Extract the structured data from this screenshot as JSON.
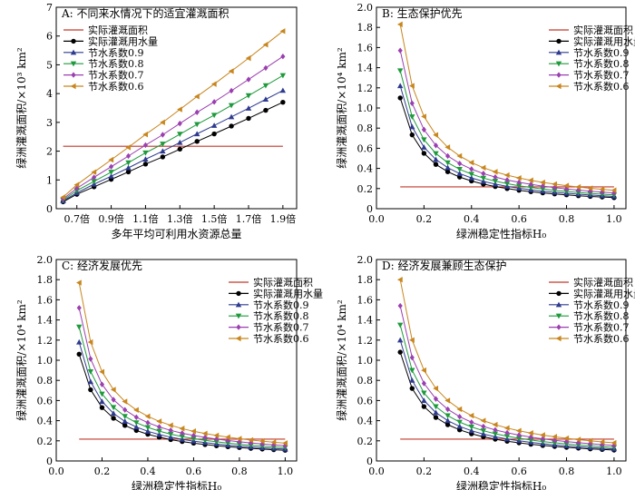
{
  "chart_data": [
    {
      "type": "line",
      "title": "A: 不同来水情况下的适宜灌溉面积",
      "xlabel": "多年平均可利用水资源总量",
      "ylabel": "绿洲灌溉面积/×10³ km²",
      "x": [
        0.62,
        0.7,
        0.8,
        0.9,
        1.0,
        1.1,
        1.2,
        1.3,
        1.4,
        1.5,
        1.6,
        1.7,
        1.8,
        1.9
      ],
      "xticks": [
        0.7,
        0.9,
        1.1,
        1.3,
        1.5,
        1.7,
        1.9
      ],
      "xtick_labels": [
        "0.7倍",
        "0.9倍",
        "1.1倍",
        "1.3倍",
        "1.5倍",
        "1.7倍",
        "1.9倍"
      ],
      "xlim": [
        0.58,
        1.98
      ],
      "ylim": [
        0,
        7
      ],
      "yticks": [
        0,
        1,
        2,
        3,
        4,
        5,
        6,
        7
      ],
      "ytick_labels": [
        "0",
        "1",
        "2",
        "3",
        "4",
        "5",
        "6",
        "7"
      ],
      "legend_position": "top-left",
      "hline": {
        "name": "实际灌溉面积",
        "value": 2.17,
        "x_range": [
          0.62,
          1.9
        ]
      },
      "series": [
        {
          "name": "实际灌溉用水量",
          "values": [
            0.24,
            0.5,
            0.76,
            1.02,
            1.28,
            1.55,
            1.8,
            2.07,
            2.34,
            2.6,
            2.87,
            3.14,
            3.42,
            3.7
          ]
        },
        {
          "name": "节水系数0.9",
          "values": [
            0.27,
            0.55,
            0.85,
            1.13,
            1.42,
            1.72,
            2.0,
            2.3,
            2.6,
            2.89,
            3.19,
            3.49,
            3.8,
            4.11
          ]
        },
        {
          "name": "节水系数0.8",
          "values": [
            0.3,
            0.63,
            0.95,
            1.27,
            1.6,
            1.94,
            2.25,
            2.59,
            2.93,
            3.25,
            3.59,
            3.93,
            4.28,
            4.63
          ]
        },
        {
          "name": "节水系数0.7",
          "values": [
            0.34,
            0.71,
            1.09,
            1.46,
            1.83,
            2.21,
            2.57,
            2.96,
            3.35,
            3.71,
            4.1,
            4.49,
            4.89,
            5.29
          ]
        },
        {
          "name": "节水系数0.6",
          "values": [
            0.4,
            0.83,
            1.27,
            1.7,
            2.13,
            2.58,
            3.0,
            3.45,
            3.9,
            4.33,
            4.78,
            5.23,
            5.7,
            6.17
          ]
        }
      ]
    },
    {
      "type": "line",
      "title": "B: 生态保护优先",
      "xlabel": "绿洲稳定性指标H₀",
      "ylabel": "绿洲灌溉面积/×10⁴ km²",
      "x": [
        0.1,
        0.15,
        0.2,
        0.25,
        0.3,
        0.35,
        0.4,
        0.45,
        0.5,
        0.55,
        0.6,
        0.65,
        0.7,
        0.75,
        0.8,
        0.85,
        0.9,
        0.95,
        1.0
      ],
      "xlim": [
        0,
        1.05
      ],
      "ylim": [
        0,
        2.0
      ],
      "xticks": [
        0,
        0.2,
        0.4,
        0.6,
        0.8,
        1.0
      ],
      "xtick_labels": [
        "0.0",
        "0.2",
        "0.4",
        "0.6",
        "0.8",
        "1.0"
      ],
      "yticks": [
        0,
        0.2,
        0.4,
        0.6,
        0.8,
        1.0,
        1.2,
        1.4,
        1.6,
        1.8,
        2.0
      ],
      "ytick_labels": [
        "0",
        "0.2",
        "0.4",
        "0.6",
        "0.8",
        "1.0",
        "1.2",
        "1.4",
        "1.6",
        "1.8",
        "2.0"
      ],
      "legend_position": "top-right",
      "hline": {
        "name": "实际灌溉面积",
        "value": 0.217,
        "x_range": [
          0.1,
          1.0
        ]
      },
      "series": [
        {
          "name": "实际灌溉用水量",
          "values": [
            1.1,
            0.733,
            0.55,
            0.44,
            0.367,
            0.314,
            0.275,
            0.244,
            0.22,
            0.2,
            0.183,
            0.169,
            0.157,
            0.147,
            0.138,
            0.129,
            0.122,
            0.116,
            0.11
          ]
        },
        {
          "name": "节水系数0.9",
          "values": [
            1.22,
            0.813,
            0.61,
            0.488,
            0.407,
            0.349,
            0.305,
            0.271,
            0.244,
            0.222,
            0.203,
            0.188,
            0.174,
            0.163,
            0.153,
            0.144,
            0.136,
            0.128,
            0.122
          ]
        },
        {
          "name": "节水系数0.8",
          "values": [
            1.37,
            0.913,
            0.685,
            0.548,
            0.457,
            0.391,
            0.343,
            0.304,
            0.274,
            0.249,
            0.228,
            0.211,
            0.196,
            0.183,
            0.171,
            0.161,
            0.152,
            0.144,
            0.137
          ]
        },
        {
          "name": "节水系数0.7",
          "values": [
            1.57,
            1.047,
            0.785,
            0.628,
            0.523,
            0.449,
            0.393,
            0.349,
            0.314,
            0.285,
            0.262,
            0.242,
            0.224,
            0.209,
            0.196,
            0.185,
            0.174,
            0.165,
            0.157
          ]
        },
        {
          "name": "节水系数0.6",
          "values": [
            1.83,
            1.22,
            0.915,
            0.732,
            0.61,
            0.523,
            0.458,
            0.407,
            0.366,
            0.333,
            0.305,
            0.282,
            0.261,
            0.244,
            0.229,
            0.215,
            0.203,
            0.193,
            0.183
          ]
        }
      ]
    },
    {
      "type": "line",
      "title": "C: 经济发展优先",
      "xlabel": "绿洲稳定性指标H₀",
      "ylabel": "绿洲灌溉面积/×10⁴ km²",
      "x": [
        0.1,
        0.15,
        0.2,
        0.25,
        0.3,
        0.35,
        0.4,
        0.45,
        0.5,
        0.55,
        0.6,
        0.65,
        0.7,
        0.75,
        0.8,
        0.85,
        0.9,
        0.95,
        1.0
      ],
      "xlim": [
        0,
        1.05
      ],
      "ylim": [
        0,
        2.0
      ],
      "xticks": [
        0,
        0.2,
        0.4,
        0.6,
        0.8,
        1.0
      ],
      "xtick_labels": [
        "0.0",
        "0.2",
        "0.4",
        "0.6",
        "0.8",
        "1.0"
      ],
      "yticks": [
        0,
        0.2,
        0.4,
        0.6,
        0.8,
        1.0,
        1.2,
        1.4,
        1.6,
        1.8,
        2.0
      ],
      "ytick_labels": [
        "0",
        "0.2",
        "0.4",
        "0.6",
        "0.8",
        "1.0",
        "1.2",
        "1.4",
        "1.6",
        "1.8",
        "2.0"
      ],
      "legend_position": "top-right",
      "hline": {
        "name": "实际灌溉面积",
        "value": 0.217,
        "x_range": [
          0.1,
          1.0
        ]
      },
      "series": [
        {
          "name": "实际灌溉用水量",
          "values": [
            1.06,
            0.707,
            0.53,
            0.424,
            0.353,
            0.303,
            0.265,
            0.236,
            0.212,
            0.193,
            0.177,
            0.163,
            0.151,
            0.141,
            0.133,
            0.125,
            0.118,
            0.112,
            0.106
          ]
        },
        {
          "name": "节水系数0.9",
          "values": [
            1.18,
            0.787,
            0.59,
            0.472,
            0.393,
            0.337,
            0.295,
            0.262,
            0.236,
            0.215,
            0.197,
            0.182,
            0.169,
            0.157,
            0.148,
            0.139,
            0.131,
            0.124,
            0.118
          ]
        },
        {
          "name": "节水系数0.8",
          "values": [
            1.33,
            0.887,
            0.665,
            0.532,
            0.443,
            0.38,
            0.333,
            0.296,
            0.266,
            0.242,
            0.222,
            0.205,
            0.19,
            0.177,
            0.166,
            0.156,
            0.148,
            0.14,
            0.133
          ]
        },
        {
          "name": "节水系数0.7",
          "values": [
            1.52,
            1.013,
            0.76,
            0.608,
            0.507,
            0.434,
            0.38,
            0.338,
            0.304,
            0.276,
            0.253,
            0.234,
            0.217,
            0.203,
            0.19,
            0.179,
            0.169,
            0.16,
            0.152
          ]
        },
        {
          "name": "节水系数0.6",
          "values": [
            1.77,
            1.18,
            0.885,
            0.708,
            0.59,
            0.506,
            0.443,
            0.393,
            0.354,
            0.322,
            0.295,
            0.272,
            0.253,
            0.236,
            0.221,
            0.208,
            0.197,
            0.186,
            0.177
          ]
        }
      ]
    },
    {
      "type": "line",
      "title": "D: 经济发展兼顾生态保护",
      "xlabel": "绿洲稳定性指标H₀",
      "ylabel": "绿洲灌溉面积/×10⁴ km²",
      "x": [
        0.1,
        0.15,
        0.2,
        0.25,
        0.3,
        0.35,
        0.4,
        0.45,
        0.5,
        0.55,
        0.6,
        0.65,
        0.7,
        0.75,
        0.8,
        0.85,
        0.9,
        0.95,
        1.0
      ],
      "xlim": [
        0,
        1.05
      ],
      "ylim": [
        0,
        2.0
      ],
      "xticks": [
        0,
        0.2,
        0.4,
        0.6,
        0.8,
        1.0
      ],
      "xtick_labels": [
        "0.0",
        "0.2",
        "0.4",
        "0.6",
        "0.8",
        "1.0"
      ],
      "yticks": [
        0,
        0.2,
        0.4,
        0.6,
        0.8,
        1.0,
        1.2,
        1.4,
        1.6,
        1.8,
        2.0
      ],
      "ytick_labels": [
        "0",
        "0.2",
        "0.4",
        "0.6",
        "0.8",
        "1.0",
        "1.2",
        "1.4",
        "1.6",
        "1.8",
        "2.0"
      ],
      "legend_position": "top-right",
      "hline": {
        "name": "实际灌溉面积",
        "value": 0.217,
        "x_range": [
          0.1,
          1.0
        ]
      },
      "series": [
        {
          "name": "实际灌溉用水量",
          "values": [
            1.08,
            0.72,
            0.54,
            0.432,
            0.36,
            0.309,
            0.27,
            0.24,
            0.216,
            0.196,
            0.18,
            0.166,
            0.154,
            0.144,
            0.135,
            0.127,
            0.12,
            0.114,
            0.108
          ]
        },
        {
          "name": "节水系数0.9",
          "values": [
            1.2,
            0.8,
            0.6,
            0.48,
            0.4,
            0.343,
            0.3,
            0.267,
            0.24,
            0.218,
            0.2,
            0.185,
            0.171,
            0.16,
            0.15,
            0.141,
            0.133,
            0.126,
            0.12
          ]
        },
        {
          "name": "节水系数0.8",
          "values": [
            1.35,
            0.9,
            0.675,
            0.54,
            0.45,
            0.386,
            0.338,
            0.3,
            0.27,
            0.245,
            0.225,
            0.208,
            0.193,
            0.18,
            0.169,
            0.159,
            0.15,
            0.142,
            0.135
          ]
        },
        {
          "name": "节水系数0.7",
          "values": [
            1.54,
            1.027,
            0.77,
            0.616,
            0.513,
            0.44,
            0.385,
            0.342,
            0.308,
            0.28,
            0.257,
            0.237,
            0.22,
            0.205,
            0.193,
            0.181,
            0.171,
            0.162,
            0.154
          ]
        },
        {
          "name": "节水系数0.6",
          "values": [
            1.8,
            1.2,
            0.9,
            0.72,
            0.6,
            0.514,
            0.45,
            0.4,
            0.36,
            0.327,
            0.3,
            0.277,
            0.257,
            0.24,
            0.225,
            0.212,
            0.2,
            0.189,
            0.18
          ]
        }
      ]
    }
  ],
  "style": {
    "hline_color": "#c0392b",
    "series_colors": [
      "#000000",
      "#2e3b8f",
      "#1e9a3c",
      "#9b3fb0",
      "#c8861e"
    ],
    "series_markers": [
      "circle",
      "triangle-up",
      "triangle-down",
      "diamond",
      "triangle-left"
    ]
  }
}
